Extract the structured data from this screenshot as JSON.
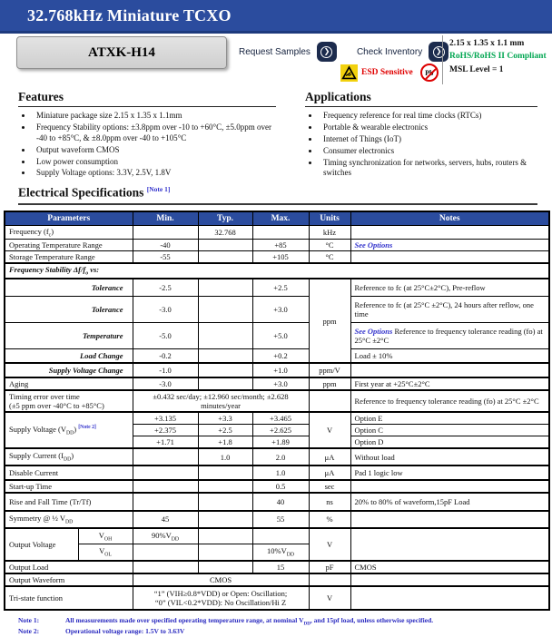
{
  "header": {
    "title": "32.768kHz Miniature TCXO",
    "part_number": "ATXK-H14",
    "request_samples_label": "Request Samples",
    "check_inventory_label": "Check Inventory",
    "go_glyph": "❯",
    "esd_label": "ESD Sensitive",
    "pb_free_label": "Pb",
    "package_size": "2.15 x 1.35 x 1.1 mm",
    "rohs_label": "RoHS/RoHS II Compliant",
    "msl_label": "MSL Level = 1"
  },
  "features": {
    "heading": "Features",
    "items": [
      "Miniature package size 2.15 x 1.35 x 1.1mm",
      "Frequency Stability options: ±3.8ppm over -10 to +60°C, ±5.0ppm over -40 to +85°C, & ±8.0ppm over -40 to +105°C",
      "Output waveform CMOS",
      "Low power consumption",
      "Supply Voltage options: 3.3V, 2.5V, 1.8V"
    ]
  },
  "applications": {
    "heading": "Applications",
    "items": [
      "Frequency reference for real time clocks (RTCs)",
      "Portable & wearable electronics",
      "Internet of Things (IoT)",
      "Consumer electronics",
      "Timing synchronization for networks, servers, hubs, routers & switches"
    ]
  },
  "specs_heading_parts": [
    {
      "t": "Electrical Specifications "
    },
    {
      "sup": "[Note 1]",
      "cls": "noteref"
    }
  ],
  "table": {
    "columns": [
      "Parameters",
      "Min.",
      "Typ.",
      "Max.",
      "Units",
      "Notes"
    ],
    "rows": {
      "freq": {
        "param_parts": [
          {
            "t": "Frequency (f"
          },
          {
            "sub": "c"
          },
          {
            "t": ")"
          }
        ],
        "typ": "32.768",
        "units": "kHz"
      },
      "otr": {
        "param": "Operating Temperature Range",
        "min": "-40",
        "max": "+85",
        "units": "°C",
        "notes_parts": [
          {
            "t": "See Options",
            "cls": "link",
            "name": "see-options-link",
            "inter": "true"
          }
        ]
      },
      "str": {
        "param": "Storage Temperature Range",
        "min": "-55",
        "max": "+105",
        "units": "°C"
      },
      "stab": {
        "label_parts": [
          {
            "t": "Frequency Stability Δf/f"
          },
          {
            "sub": "o"
          },
          {
            "t": " vs:"
          }
        ]
      },
      "tol1": {
        "param": "Tolerance",
        "min": "-2.5",
        "max": "+2.5",
        "units": "ppm",
        "notes": "Reference to fc (at 25°C±2°C), Pre-reflow"
      },
      "tol2": {
        "param": "Tolerance",
        "min": "-3.0",
        "max": "+3.0",
        "notes": "Reference to fc (at 25°C ±2°C), 24 hours after reflow, one time"
      },
      "temp": {
        "param": "Temperature",
        "min": "-5.0",
        "max": "+5.0",
        "notes_parts": [
          {
            "t": "See Options ",
            "cls": "link",
            "name": "see-options-link",
            "inter": "true"
          },
          {
            "t": "Reference to frequency tolerance reading (fo) at 25°C ±2°C"
          }
        ]
      },
      "load": {
        "param": "Load Change",
        "min": "-0.2",
        "max": "+0.2",
        "notes": "Load ± 10%"
      },
      "svc": {
        "param": "Supply Voltage Change",
        "min": "-1.0",
        "max": "+1.0",
        "units": "ppm/V"
      },
      "aging": {
        "param": "Aging",
        "min": "-3.0",
        "max": "+3.0",
        "units": "ppm",
        "notes": "First year at +25°C±2°C"
      },
      "timing": {
        "param_parts": [
          {
            "t": "Timing error over time"
          },
          {
            "br": true
          },
          {
            "t": "(±5 ppm over -40°C to +85°C)"
          }
        ],
        "value": "±0.432 sec/day; ±12.960 sec/month; ±2.628 minutes/year",
        "notes": "Reference to frequency tolerance reading (fo) at 25°C ±2°C"
      },
      "vdd": {
        "param_parts": [
          {
            "t": "Supply Voltage (V"
          },
          {
            "sub": "DD"
          },
          {
            "t": ") "
          },
          {
            "sup": "[Note 2]",
            "cls": "noteref"
          }
        ],
        "units": "V"
      },
      "vdd_e": {
        "min": "+3.135",
        "typ": "+3.3",
        "max": "+3.465",
        "notes": "Option E"
      },
      "vdd_c": {
        "min": "+2.375",
        "typ": "+2.5",
        "max": "+2.625",
        "notes": "Option C"
      },
      "vdd_d": {
        "min": "+1.71",
        "typ": "+1.8",
        "max": "+1.89",
        "notes": "Option D"
      },
      "idd": {
        "param_parts": [
          {
            "t": "Supply Current (I"
          },
          {
            "sub": "DD"
          },
          {
            "t": ")"
          }
        ],
        "typ": "1.0",
        "max": "2.0",
        "units": "μA",
        "notes": "Without load"
      },
      "disable": {
        "param": "Disable Current",
        "max": "1.0",
        "units": "μA",
        "notes": "Pad 1 logic low"
      },
      "startup": {
        "param": "Start-up Time",
        "max": "0.5",
        "units": "sec"
      },
      "trtf": {
        "param": "Rise and Fall Time (Tr/Tf)",
        "max": "40",
        "units": "ns",
        "notes": "20% to 80% of waveform,15pF Load"
      },
      "symmetry": {
        "param_parts": [
          {
            "t": "Symmetry @ ½ V"
          },
          {
            "sub": "DD"
          }
        ],
        "min": "45",
        "max": "55",
        "units": "%"
      },
      "ov": {
        "param": "Output Voltage",
        "units": "V"
      },
      "voh": {
        "sub_parts": [
          {
            "t": "V"
          },
          {
            "sub": "OH"
          }
        ],
        "min_parts": [
          {
            "t": "90%V"
          },
          {
            "sub": "DD"
          }
        ]
      },
      "vol": {
        "sub_parts": [
          {
            "t": "V"
          },
          {
            "sub": "OL"
          }
        ],
        "max_parts": [
          {
            "t": "10%V"
          },
          {
            "sub": "DD"
          }
        ]
      },
      "outload": {
        "param": "Output Load",
        "max": "15",
        "units": "pF",
        "notes": "CMOS"
      },
      "waveform": {
        "param": "Output Waveform",
        "value": "CMOS"
      },
      "tristate": {
        "param": "Tri-state function",
        "value_parts": [
          {
            "t": "“1” (VIH≥0.8*VDD) or Open: Oscillation;"
          },
          {
            "br": true
          },
          {
            "t": "“0” (VIL<0.2*VDD): No Oscillation/Hi Z"
          }
        ],
        "units": "V"
      }
    }
  },
  "footnotes": [
    {
      "label": "Note 1:",
      "text_parts": [
        {
          "t": "All measurements made over specified operating temperature range, at nominal V"
        },
        {
          "sub": "DD"
        },
        {
          "t": ", and 15pf load, unless otherwise specified."
        }
      ]
    },
    {
      "label": "Note 2:",
      "text_parts": [
        {
          "t": "Operational voltage range: 1.5V to 3.63V"
        }
      ]
    }
  ],
  "colors": {
    "banner_blue": "#2b4c9e",
    "link_blue": "#3333cc",
    "rohs_green": "#00a651",
    "esd_red": "#e00000"
  }
}
